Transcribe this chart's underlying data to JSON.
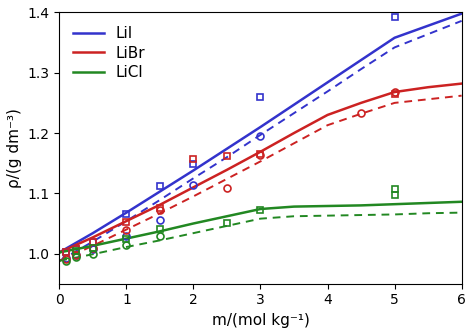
{
  "title": "",
  "xlabel": "m/(mol kg⁻¹)",
  "ylabel": "ρ/(g dm⁻³)",
  "xlim": [
    0,
    6
  ],
  "ylim": [
    0.95,
    1.4
  ],
  "yticks": [
    1.0,
    1.1,
    1.2,
    1.3,
    1.4
  ],
  "xticks": [
    0,
    1,
    2,
    3,
    4,
    5,
    6
  ],
  "colors": {
    "LiI": "#3333cc",
    "LiBr": "#cc2222",
    "LiCl": "#228822"
  },
  "curves_298": {
    "LiI": {
      "x": [
        0,
        0.5,
        1.0,
        1.5,
        2.0,
        2.5,
        3.0,
        3.5,
        4.0,
        4.5,
        5.0,
        5.5,
        6.0
      ],
      "y": [
        1.002,
        1.034,
        1.068,
        1.103,
        1.138,
        1.174,
        1.21,
        1.247,
        1.284,
        1.321,
        1.358,
        1.378,
        1.398
      ]
    },
    "LiBr": {
      "x": [
        0,
        0.5,
        1.0,
        1.5,
        2.0,
        2.5,
        3.0,
        3.5,
        4.0,
        4.5,
        5.0,
        5.5,
        6.0
      ],
      "y": [
        1.002,
        1.027,
        1.054,
        1.081,
        1.11,
        1.139,
        1.169,
        1.2,
        1.23,
        1.25,
        1.268,
        1.276,
        1.282
      ]
    },
    "LiCl": {
      "x": [
        0,
        0.5,
        1.0,
        1.5,
        2.0,
        2.5,
        3.0,
        3.5,
        4.0,
        4.5,
        5.0,
        5.5,
        6.0
      ],
      "y": [
        1.002,
        1.013,
        1.025,
        1.037,
        1.05,
        1.062,
        1.074,
        1.078,
        1.079,
        1.08,
        1.082,
        1.084,
        1.086
      ]
    }
  },
  "curves_323": {
    "LiI": {
      "x": [
        0,
        0.5,
        1.0,
        1.5,
        2.0,
        2.5,
        3.0,
        3.5,
        4.0,
        4.5,
        5.0,
        5.5,
        6.0
      ],
      "y": [
        0.988,
        1.02,
        1.054,
        1.089,
        1.125,
        1.16,
        1.197,
        1.233,
        1.269,
        1.306,
        1.342,
        1.364,
        1.386
      ]
    },
    "LiBr": {
      "x": [
        0,
        0.5,
        1.0,
        1.5,
        2.0,
        2.5,
        3.0,
        3.5,
        4.0,
        4.5,
        5.0,
        5.5,
        6.0
      ],
      "y": [
        0.988,
        1.013,
        1.04,
        1.067,
        1.095,
        1.124,
        1.153,
        1.183,
        1.213,
        1.232,
        1.25,
        1.256,
        1.262
      ]
    },
    "LiCl": {
      "x": [
        0,
        0.5,
        1.0,
        1.5,
        2.0,
        2.5,
        3.0,
        3.5,
        4.0,
        4.5,
        5.0,
        5.5,
        6.0
      ],
      "y": [
        0.988,
        0.999,
        1.011,
        1.022,
        1.034,
        1.046,
        1.058,
        1.062,
        1.063,
        1.064,
        1.065,
        1.067,
        1.068
      ]
    }
  },
  "exp_298_squares": {
    "LiI": {
      "x": [
        0.1,
        0.25,
        0.5,
        1.0,
        1.5,
        2.0,
        3.0,
        5.0
      ],
      "y": [
        1.003,
        1.008,
        1.02,
        1.065,
        1.112,
        1.148,
        1.26,
        1.392
      ]
    },
    "LiBr": {
      "x": [
        0.1,
        0.25,
        0.5,
        1.0,
        1.5,
        2.0,
        2.5,
        3.0,
        5.0
      ],
      "y": [
        1.002,
        1.007,
        1.019,
        1.052,
        1.075,
        1.157,
        1.162,
        1.165,
        1.265
      ]
    },
    "LiCl": {
      "x": [
        0.25,
        0.5,
        1.0,
        1.5,
        2.5,
        3.0,
        5.0,
        5.0
      ],
      "y": [
        1.004,
        1.01,
        1.025,
        1.041,
        1.05,
        1.072,
        1.097,
        1.107
      ]
    }
  },
  "exp_323_circles": {
    "LiI": {
      "x": [
        0.1,
        0.25,
        0.5,
        1.0,
        1.5,
        2.0,
        3.0
      ],
      "y": [
        0.993,
        0.997,
        1.007,
        1.03,
        1.055,
        1.113,
        1.195
      ]
    },
    "LiBr": {
      "x": [
        0.1,
        0.25,
        0.5,
        1.0,
        1.5,
        2.5,
        3.0,
        4.5,
        5.0
      ],
      "y": [
        0.991,
        0.997,
        1.01,
        1.04,
        1.073,
        1.109,
        1.164,
        1.233,
        1.268
      ]
    },
    "LiCl": {
      "x": [
        0.1,
        0.25,
        0.5,
        1.0,
        1.5
      ],
      "y": [
        0.988,
        0.994,
        1.0,
        1.015,
        1.03
      ]
    }
  },
  "legend_labels": [
    "LiI",
    "LiBr",
    "LiCl"
  ],
  "fontsize": 11
}
